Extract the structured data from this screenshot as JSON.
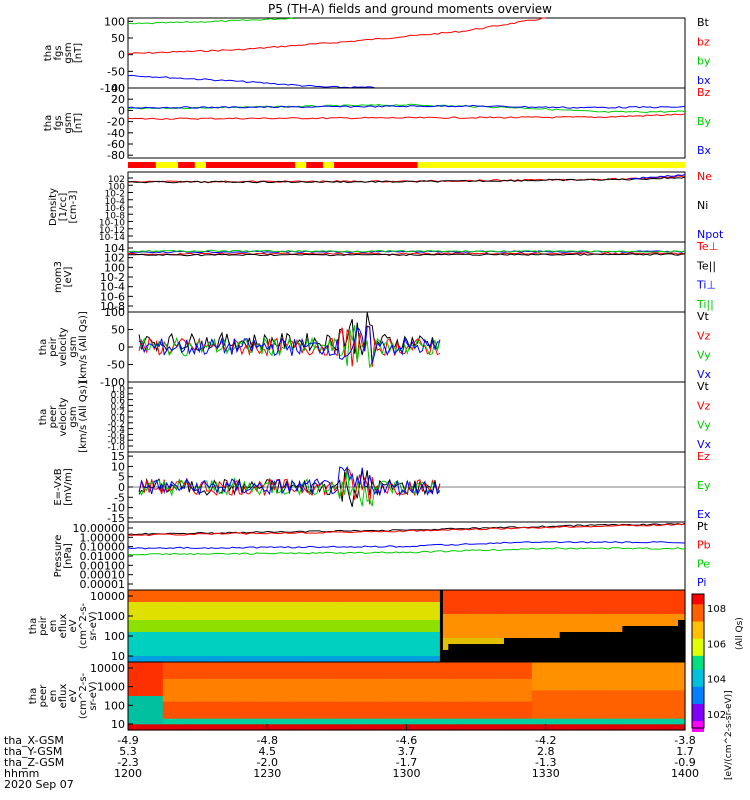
{
  "title": "P5 (TH-A) fields and ground moments overview",
  "chart_data": [
    {
      "type": "line",
      "ylabel": [
        "tha",
        "fgs",
        "gsm",
        "[nT]"
      ],
      "yticks": [
        100,
        50,
        0,
        -50,
        -100
      ],
      "ylim": [
        -100,
        110
      ],
      "series": [
        {
          "name": "Bt",
          "color": "#000000",
          "values": []
        },
        {
          "name": "bz",
          "color": "#ff0000",
          "values": [
            {
              "x": 0,
              "y": 3
            },
            {
              "x": 0.2,
              "y": 15
            },
            {
              "x": 0.4,
              "y": 40
            },
            {
              "x": 0.6,
              "y": 70
            },
            {
              "x": 0.75,
              "y": 110
            }
          ]
        },
        {
          "name": "by",
          "color": "#00cc00",
          "values": [
            {
              "x": 0,
              "y": 92
            },
            {
              "x": 0.2,
              "y": 102
            },
            {
              "x": 0.3,
              "y": 110
            }
          ]
        },
        {
          "name": "bx",
          "color": "#0000ff",
          "values": [
            {
              "x": 0,
              "y": -62
            },
            {
              "x": 0.2,
              "y": -80
            },
            {
              "x": 0.35,
              "y": -97
            },
            {
              "x": 0.45,
              "y": -99
            }
          ]
        }
      ]
    },
    {
      "type": "line",
      "ylabel": [
        "tha",
        "fgs",
        "gsm",
        "[nT]"
      ],
      "yticks": [
        40,
        20,
        0,
        -20,
        -40,
        -60,
        -80
      ],
      "ylim": [
        -85,
        40
      ],
      "series": [
        {
          "name": "Bz",
          "color": "#ff0000",
          "values": [
            {
              "x": 0,
              "y": -15
            },
            {
              "x": 0.3,
              "y": -14
            },
            {
              "x": 0.6,
              "y": -13
            },
            {
              "x": 0.85,
              "y": -12
            },
            {
              "x": 1,
              "y": -7
            }
          ]
        },
        {
          "name": "By",
          "color": "#00cc00",
          "values": [
            {
              "x": 0,
              "y": 3
            },
            {
              "x": 0.3,
              "y": 7
            },
            {
              "x": 0.5,
              "y": 10
            },
            {
              "x": 0.7,
              "y": 5
            },
            {
              "x": 0.85,
              "y": -3
            },
            {
              "x": 1,
              "y": -2
            }
          ]
        },
        {
          "name": "Bx",
          "color": "#0000ff",
          "values": [
            {
              "x": 0,
              "y": 5
            },
            {
              "x": 0.3,
              "y": 6
            },
            {
              "x": 0.6,
              "y": 8
            },
            {
              "x": 0.8,
              "y": 5
            },
            {
              "x": 1,
              "y": 6
            }
          ]
        }
      ]
    },
    {
      "type": "line",
      "log": true,
      "ylabel": [
        "Density",
        "[1/cc]",
        "[cm-3]"
      ],
      "yticks": [
        "10^2",
        "10^0",
        "10^-2",
        "10^-4",
        "10^-6",
        "10^-8",
        "10^-10",
        "10^-12",
        "10^-14"
      ],
      "ylim": [
        -15,
        3
      ],
      "series": [
        {
          "name": "Ne",
          "color": "#ff0000",
          "values": [
            {
              "x": 0,
              "y": 0.5
            },
            {
              "x": 0.5,
              "y": 0.6
            },
            {
              "x": 0.9,
              "y": 1.2
            },
            {
              "x": 1,
              "y": 2.0
            }
          ]
        },
        {
          "name": "Ni",
          "color": "#000000",
          "values": [
            {
              "x": 0,
              "y": 0.4
            },
            {
              "x": 0.5,
              "y": 0.5
            },
            {
              "x": 0.9,
              "y": 1.1
            },
            {
              "x": 1,
              "y": 1.6
            }
          ]
        },
        {
          "name": "Npot",
          "color": "#0000ff",
          "values": [
            {
              "x": 0.9,
              "y": 1.3
            },
            {
              "x": 1,
              "y": 2.2
            }
          ]
        }
      ]
    },
    {
      "type": "line",
      "log": true,
      "ylabel": [
        "mom3",
        "[eV]"
      ],
      "yticks": [
        "10^4",
        "10^2",
        "10^0",
        "10^-2",
        "10^-4",
        "10^-6",
        "10^-8"
      ],
      "ylim": [
        -9,
        5
      ],
      "series": [
        {
          "name": "Te⊥",
          "color": "#ff0000",
          "values": [
            {
              "x": 0,
              "y": 2.6
            },
            {
              "x": 1,
              "y": 2.7
            }
          ]
        },
        {
          "name": "Te||",
          "color": "#000000",
          "values": [
            {
              "x": 0,
              "y": 2.4
            },
            {
              "x": 1,
              "y": 2.5
            }
          ]
        },
        {
          "name": "Ti⊥",
          "color": "#0000ff",
          "values": [
            {
              "x": 0,
              "y": 3.0
            },
            {
              "x": 1,
              "y": 3.1
            }
          ]
        },
        {
          "name": "Ti||",
          "color": "#00cc00",
          "values": [
            {
              "x": 0,
              "y": 3.2
            },
            {
              "x": 1,
              "y": 3.1
            }
          ]
        }
      ]
    },
    {
      "type": "line",
      "ylabel": [
        "tha",
        "peir",
        "velocity",
        "gsm",
        "[km/s (All Qs)]"
      ],
      "yticks": [
        100,
        50,
        0,
        -50,
        -100
      ],
      "ylim": [
        -100,
        100
      ],
      "series": [
        {
          "name": "Vt",
          "color": "#000000",
          "values": []
        },
        {
          "name": "Vz",
          "color": "#ff0000",
          "values": []
        },
        {
          "name": "Vy",
          "color": "#00cc00",
          "values": []
        },
        {
          "name": "Vx",
          "color": "#0000ff",
          "values": []
        }
      ]
    },
    {
      "type": "line",
      "ylabel": [
        "tha",
        "peer",
        "velocity",
        "gsm",
        "[km/s (All Qs)]"
      ],
      "yticks": [
        "1.0",
        "0.8",
        "0.6",
        "0.4",
        "0.2",
        "0.0",
        "-0.2",
        "-0.4",
        "-0.6",
        "-0.8",
        "-1.0"
      ],
      "ylim": [
        -1,
        1
      ],
      "series": [
        {
          "name": "Vt",
          "color": "#000000",
          "values": []
        },
        {
          "name": "Vz",
          "color": "#ff0000",
          "values": []
        },
        {
          "name": "Vy",
          "color": "#00cc00",
          "values": []
        },
        {
          "name": "Vx",
          "color": "#0000ff",
          "values": []
        }
      ]
    },
    {
      "type": "line",
      "ylabel": [
        "E=-VxB",
        "[mV/m]"
      ],
      "yticks": [
        15,
        10,
        5,
        0,
        -5,
        -10,
        -15
      ],
      "ylim": [
        -17,
        17
      ],
      "series": [
        {
          "name": "Ez",
          "color": "#ff0000",
          "values": []
        },
        {
          "name": "Ey",
          "color": "#00cc00",
          "values": []
        },
        {
          "name": "Ex",
          "color": "#0000ff",
          "values": []
        }
      ]
    },
    {
      "type": "line",
      "log": true,
      "ylabel": [
        "Pressure",
        "[nPa]"
      ],
      "yticks": [
        "10.00000",
        "1.00000",
        "0.10000",
        "0.01000",
        "0.00100",
        "0.00010",
        "0.00001"
      ],
      "ylim": [
        -5.3,
        1.4
      ],
      "series": [
        {
          "name": "Pt",
          "color": "#000000",
          "values": [
            {
              "x": 0,
              "y": 0.2
            },
            {
              "x": 0.5,
              "y": 0.6
            },
            {
              "x": 0.85,
              "y": 1.1
            },
            {
              "x": 1,
              "y": 1.2
            }
          ]
        },
        {
          "name": "Pb",
          "color": "#ff0000",
          "values": [
            {
              "x": 0,
              "y": 0.1
            },
            {
              "x": 0.5,
              "y": 0.5
            },
            {
              "x": 0.85,
              "y": 1.0
            },
            {
              "x": 1,
              "y": 1.15
            }
          ]
        },
        {
          "name": "Pe",
          "color": "#00cc00",
          "values": [
            {
              "x": 0,
              "y": -1.8
            },
            {
              "x": 0.5,
              "y": -1.6
            },
            {
              "x": 0.75,
              "y": -1.2
            },
            {
              "x": 1,
              "y": -1.2
            }
          ]
        },
        {
          "name": "Pi",
          "color": "#0000ff",
          "values": [
            {
              "x": 0,
              "y": -1.2
            },
            {
              "x": 0.5,
              "y": -1.0
            },
            {
              "x": 0.7,
              "y": -0.6
            },
            {
              "x": 1,
              "y": -0.6
            }
          ]
        }
      ]
    },
    {
      "type": "heatmap",
      "ylabel": [
        "tha",
        "peir",
        "en",
        "eflux",
        "eV",
        "(cm^2-s-",
        "sr-eV)"
      ],
      "yticks": [
        "10000",
        "1000",
        "100",
        "10"
      ]
    },
    {
      "type": "heatmap",
      "ylabel": [
        "tha",
        "peer",
        "en",
        "eflux",
        "eV",
        "(cm^2-s-",
        "sr-eV)"
      ],
      "yticks": [
        "10000",
        "1000",
        "100",
        "10"
      ]
    }
  ],
  "colorbar": {
    "ticks": [
      "10^8",
      "10^6",
      "10^4",
      "10^2"
    ],
    "label_top": "(All Qs)",
    "label": "[eV/(cm^2-s-sr-eV)]"
  },
  "xaxis": {
    "ticks": [
      {
        "x": 0.0,
        "rows": [
          "-4.9",
          "5.3",
          "-2.3",
          "1200"
        ]
      },
      {
        "x": 0.25,
        "rows": [
          "-4.8",
          "4.5",
          "-2.0",
          "1230"
        ]
      },
      {
        "x": 0.5,
        "rows": [
          "-4.6",
          "3.7",
          "-1.7",
          "1300"
        ]
      },
      {
        "x": 0.75,
        "rows": [
          "-4.2",
          "2.8",
          "-1.3",
          "1330"
        ]
      },
      {
        "x": 1.0,
        "rows": [
          "-3.8",
          "1.7",
          "-0.9",
          "1400"
        ]
      }
    ],
    "row_labels": [
      "tha_X-GSM",
      "tha_Y-GSM",
      "tha_Z-GSM",
      "hhmm"
    ],
    "date": "2020 Sep 07"
  },
  "mode_bar": {
    "segments": [
      {
        "from": 0.0,
        "to": 0.05,
        "color": "#ff0000"
      },
      {
        "from": 0.05,
        "to": 0.09,
        "color": "#ffff00"
      },
      {
        "from": 0.09,
        "to": 0.12,
        "color": "#ff0000"
      },
      {
        "from": 0.12,
        "to": 0.14,
        "color": "#ffff00"
      },
      {
        "from": 0.14,
        "to": 0.3,
        "color": "#ff0000"
      },
      {
        "from": 0.3,
        "to": 0.32,
        "color": "#ffff00"
      },
      {
        "from": 0.32,
        "to": 0.35,
        "color": "#ff0000"
      },
      {
        "from": 0.35,
        "to": 0.37,
        "color": "#ffff00"
      },
      {
        "from": 0.37,
        "to": 0.52,
        "color": "#ff0000"
      },
      {
        "from": 0.52,
        "to": 1.0,
        "color": "#ffff00"
      }
    ]
  }
}
